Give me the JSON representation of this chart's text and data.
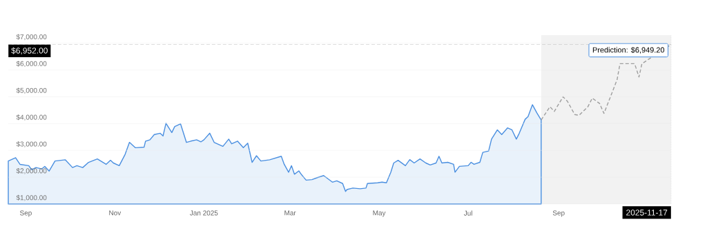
{
  "chart_data": {
    "type": "line",
    "x": [
      "2024-08-20",
      "2024-08-25",
      "2024-08-28",
      "2024-09-03",
      "2024-09-05",
      "2024-09-08",
      "2024-09-12",
      "2024-09-14",
      "2024-09-17",
      "2024-09-21",
      "2024-09-28",
      "2024-10-03",
      "2024-10-06",
      "2024-10-10",
      "2024-10-14",
      "2024-10-20",
      "2024-10-26",
      "2024-10-29",
      "2024-10-31",
      "2024-11-04",
      "2024-11-08",
      "2024-11-11",
      "2024-11-15",
      "2024-11-21",
      "2024-11-22",
      "2024-11-25",
      "2024-11-28",
      "2024-12-02",
      "2024-12-04",
      "2024-12-06",
      "2024-12-10",
      "2024-12-12",
      "2024-12-16",
      "2024-12-20",
      "2024-12-23",
      "2024-12-27",
      "2024-12-30",
      "2025-01-01",
      "2025-01-05",
      "2025-01-08",
      "2025-01-14",
      "2025-01-18",
      "2025-01-20",
      "2025-01-24",
      "2025-01-28",
      "2025-01-31",
      "2025-02-03",
      "2025-02-06",
      "2025-02-09",
      "2025-02-15",
      "2025-02-23",
      "2025-02-25",
      "2025-02-28",
      "2025-03-02",
      "2025-03-04",
      "2025-03-07",
      "2025-03-09",
      "2025-03-12",
      "2025-03-16",
      "2025-03-20",
      "2025-03-24",
      "2025-03-27",
      "2025-03-30",
      "2025-04-02",
      "2025-04-06",
      "2025-04-08",
      "2025-04-09",
      "2025-04-13",
      "2025-04-18",
      "2025-04-22",
      "2025-04-23",
      "2025-04-30",
      "2025-05-03",
      "2025-05-06",
      "2025-05-09",
      "2025-05-11",
      "2025-05-14",
      "2025-05-19",
      "2025-05-22",
      "2025-05-25",
      "2025-05-29",
      "2025-06-02",
      "2025-06-05",
      "2025-06-09",
      "2025-06-11",
      "2025-06-13",
      "2025-06-17",
      "2025-06-21",
      "2025-06-22",
      "2025-06-25",
      "2025-07-01",
      "2025-07-03",
      "2025-07-05",
      "2025-07-09",
      "2025-07-11",
      "2025-07-15",
      "2025-07-17",
      "2025-07-21",
      "2025-07-24",
      "2025-07-28",
      "2025-07-31",
      "2025-08-03",
      "2025-08-05",
      "2025-08-09",
      "2025-08-11",
      "2025-08-14",
      "2025-08-17",
      "2025-08-20"
    ],
    "series": [
      {
        "type": "area",
        "color": "#4a8fe0",
        "values": [
          2605,
          2728,
          2480,
          2430,
          2280,
          2360,
          2310,
          2400,
          2230,
          2605,
          2650,
          2360,
          2430,
          2360,
          2555,
          2680,
          2480,
          2630,
          2530,
          2430,
          2850,
          3300,
          3100,
          3120,
          3345,
          3395,
          3590,
          3640,
          3540,
          4010,
          3665,
          3890,
          3990,
          3300,
          3345,
          3395,
          3320,
          3395,
          3640,
          3300,
          3150,
          3420,
          3245,
          3345,
          3100,
          3270,
          2555,
          2800,
          2605,
          2650,
          2780,
          2480,
          2185,
          2430,
          2110,
          2235,
          2085,
          1890,
          1910,
          1990,
          2060,
          1940,
          1815,
          1865,
          1765,
          1470,
          1540,
          1595,
          1570,
          1595,
          1765,
          1790,
          1815,
          1790,
          2185,
          2530,
          2630,
          2430,
          2655,
          2530,
          2680,
          2530,
          2455,
          2530,
          2780,
          2530,
          2555,
          2480,
          2185,
          2405,
          2430,
          2555,
          2480,
          2555,
          2925,
          2975,
          3420,
          3765,
          3590,
          3840,
          3765,
          3420,
          3640,
          4160,
          4260,
          4705,
          4405,
          4135
        ]
      },
      {
        "line_style": "dashed",
        "color": "#9e9e9e",
        "x": [
          "2025-08-20",
          "2025-08-26",
          "2025-08-29",
          "2025-09-04",
          "2025-09-07",
          "2025-09-12",
          "2025-09-15",
          "2025-09-21",
          "2025-09-24",
          "2025-09-29",
          "2025-10-02",
          "2025-10-07",
          "2025-10-11",
          "2025-10-13",
          "2025-10-23",
          "2025-10-26",
          "2025-10-28",
          "2025-11-17"
        ],
        "values": [
          4135,
          4630,
          4455,
          5000,
          4830,
          4335,
          4310,
          4630,
          4950,
          4750,
          4380,
          5075,
          5640,
          6235,
          6235,
          5740,
          6235,
          6949.2
        ]
      }
    ],
    "xlim": [
      "2024-08-20",
      "2025-11-17"
    ],
    "xticks": [
      {
        "value": "2024-09-01",
        "label": "Sep"
      },
      {
        "value": "2024-11-01",
        "label": "Nov"
      },
      {
        "value": "2025-01-01",
        "label": "Jan 2025"
      },
      {
        "value": "2025-03-01",
        "label": "Mar"
      },
      {
        "value": "2025-05-01",
        "label": "May"
      },
      {
        "value": "2025-07-01",
        "label": "Jul"
      },
      {
        "value": "2025-09-01",
        "label": "Sep"
      }
    ],
    "ylim": [
      1000,
      7300
    ],
    "yticks": [
      {
        "value": 1000,
        "label": "$1,000.00"
      },
      {
        "value": 2000,
        "label": "$2,000.00"
      },
      {
        "value": 3000,
        "label": "$3,000.00"
      },
      {
        "value": 4000,
        "label": "$4,000.00"
      },
      {
        "value": 5000,
        "label": "$5,000.00"
      },
      {
        "value": 6000,
        "label": "$6,000.00"
      },
      {
        "value": 7000,
        "label": "$7,000.00"
      }
    ],
    "grid": "y",
    "marker": "none",
    "bands": [
      {
        "axis": "x",
        "from": "2025-08-20",
        "to": "2025-11-17",
        "color": "#f2f2f2"
      }
    ],
    "ref_lines": [
      {
        "axis": "y",
        "value": 6952,
        "label": "$6,952.00",
        "color": "#aaaaaa",
        "line_style": "dashed"
      },
      {
        "axis": "x",
        "value": "2025-11-17",
        "label": "2025-11-17",
        "color": "#aaaaaa",
        "line_style": "dotted"
      }
    ],
    "annotations": [
      {
        "text": "Prediction: $6,949.20",
        "x": "2025-11-17",
        "y": 6949.2
      }
    ]
  }
}
